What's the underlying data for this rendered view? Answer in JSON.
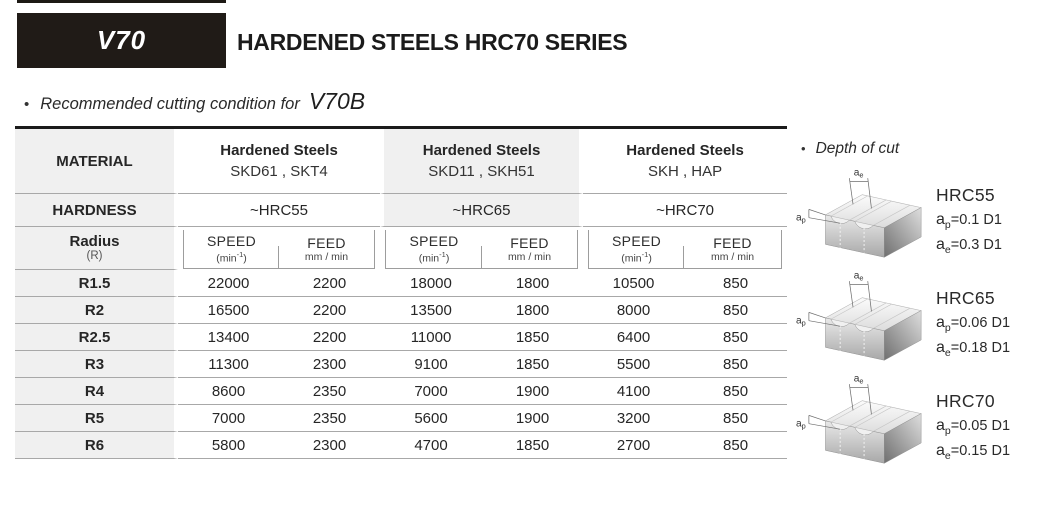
{
  "header": {
    "logo": "V70",
    "title": "HARDENED STEELS HRC70 SERIES"
  },
  "subtitle": {
    "bullet": "•",
    "text": "Recommended cutting condition for",
    "model": "V70B"
  },
  "colors": {
    "accent_black": "#201b17",
    "header_cell_gray": "#f0f0f0",
    "rule_gray": "#a8a8a8"
  },
  "table": {
    "material_header": "MATERIAL",
    "hardness_header": "HARDNESS",
    "radius_header": "Radius",
    "radius_sub": "(R)",
    "speed_label": "SPEED",
    "speed_unit_pre": "(min",
    "speed_unit_sup": "-1",
    "speed_unit_post": ")",
    "feed_label": "FEED",
    "feed_unit": "mm / min",
    "groups": [
      {
        "name": "Hardened Steels",
        "grades": "SKD61 , SKT4",
        "hardness": "~HRC55"
      },
      {
        "name": "Hardened Steels",
        "grades": "SKD11 , SKH51",
        "hardness": "~HRC65"
      },
      {
        "name": "Hardened Steels",
        "grades": "SKH , HAP",
        "hardness": "~HRC70"
      }
    ],
    "rows": [
      {
        "radius": "R1.5",
        "values": [
          22000,
          2200,
          18000,
          1800,
          10500,
          850
        ]
      },
      {
        "radius": "R2",
        "values": [
          16500,
          2200,
          13500,
          1800,
          8000,
          850
        ]
      },
      {
        "radius": "R2.5",
        "values": [
          13400,
          2200,
          11000,
          1850,
          6400,
          850
        ]
      },
      {
        "radius": "R3",
        "values": [
          11300,
          2300,
          9100,
          1850,
          5500,
          850
        ]
      },
      {
        "radius": "R4",
        "values": [
          8600,
          2350,
          7000,
          1900,
          4100,
          850
        ]
      },
      {
        "radius": "R5",
        "values": [
          7000,
          2350,
          5600,
          1900,
          3200,
          850
        ]
      },
      {
        "radius": "R6",
        "values": [
          5800,
          2300,
          4700,
          1850,
          2700,
          850
        ]
      }
    ]
  },
  "depth_panel": {
    "bullet": "•",
    "title": "Depth of cut",
    "a_base": "a",
    "ap_sub": "p",
    "ae_sub": "e",
    "entries": [
      {
        "hrc": "HRC55",
        "ap_value": "=0.1 D1",
        "ae_value": "=0.3 D1"
      },
      {
        "hrc": "HRC65",
        "ap_value": "=0.06 D1",
        "ae_value": "=0.18 D1"
      },
      {
        "hrc": "HRC70",
        "ap_value": "=0.05 D1",
        "ae_value": "=0.15 D1"
      }
    ],
    "entry_tops": [
      165,
      268,
      371
    ]
  }
}
